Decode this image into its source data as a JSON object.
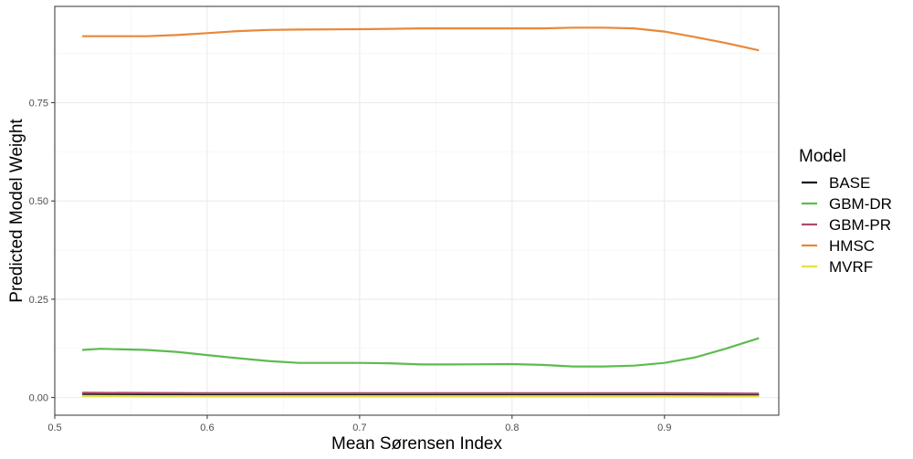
{
  "chart_data": {
    "type": "line",
    "title": "",
    "xlabel": "Mean Sørensen Index",
    "ylabel": "Predicted Model Weight",
    "xlim": [
      0.5,
      0.975
    ],
    "ylim": [
      -0.045,
      0.995
    ],
    "x_ticks": [
      0.5,
      0.6,
      0.7,
      0.8,
      0.9
    ],
    "x_tick_labels": [
      "0.5",
      "0.6",
      "0.7",
      "0.8",
      "0.9"
    ],
    "y_ticks": [
      0.0,
      0.25,
      0.5,
      0.75
    ],
    "y_tick_labels": [
      "0.00",
      "0.25",
      "0.50",
      "0.75"
    ],
    "grid": true,
    "legend_title": "Model",
    "legend_position": "right",
    "series": [
      {
        "name": "BASE",
        "color": "#0d1b26",
        "x": [
          0.518,
          0.6,
          0.7,
          0.8,
          0.9,
          0.962
        ],
        "y": [
          0.008,
          0.008,
          0.008,
          0.008,
          0.008,
          0.007
        ]
      },
      {
        "name": "GBM-DR",
        "color": "#5dbb4f",
        "x": [
          0.518,
          0.53,
          0.56,
          0.58,
          0.6,
          0.62,
          0.64,
          0.66,
          0.7,
          0.72,
          0.74,
          0.76,
          0.8,
          0.82,
          0.84,
          0.86,
          0.88,
          0.9,
          0.92,
          0.94,
          0.962
        ],
        "y": [
          0.121,
          0.124,
          0.121,
          0.116,
          0.108,
          0.1,
          0.093,
          0.088,
          0.088,
          0.087,
          0.084,
          0.084,
          0.085,
          0.083,
          0.079,
          0.079,
          0.081,
          0.088,
          0.102,
          0.124,
          0.151
        ]
      },
      {
        "name": "GBM-PR",
        "color": "#b24b6b",
        "x": [
          0.518,
          0.6,
          0.7,
          0.8,
          0.9,
          0.962
        ],
        "y": [
          0.012,
          0.011,
          0.011,
          0.011,
          0.011,
          0.01
        ]
      },
      {
        "name": "HMSC",
        "color": "#e8883a",
        "x": [
          0.518,
          0.56,
          0.58,
          0.6,
          0.62,
          0.64,
          0.66,
          0.7,
          0.72,
          0.74,
          0.76,
          0.8,
          0.82,
          0.84,
          0.86,
          0.88,
          0.9,
          0.92,
          0.94,
          0.962
        ],
        "y": [
          0.919,
          0.919,
          0.922,
          0.927,
          0.932,
          0.935,
          0.936,
          0.937,
          0.938,
          0.939,
          0.939,
          0.939,
          0.939,
          0.941,
          0.941,
          0.939,
          0.931,
          0.917,
          0.902,
          0.883
        ]
      },
      {
        "name": "MVRF",
        "color": "#e6e040",
        "x": [
          0.518,
          0.6,
          0.7,
          0.8,
          0.9,
          0.962
        ],
        "y": [
          0.004,
          0.003,
          0.003,
          0.003,
          0.003,
          0.003
        ]
      }
    ]
  }
}
